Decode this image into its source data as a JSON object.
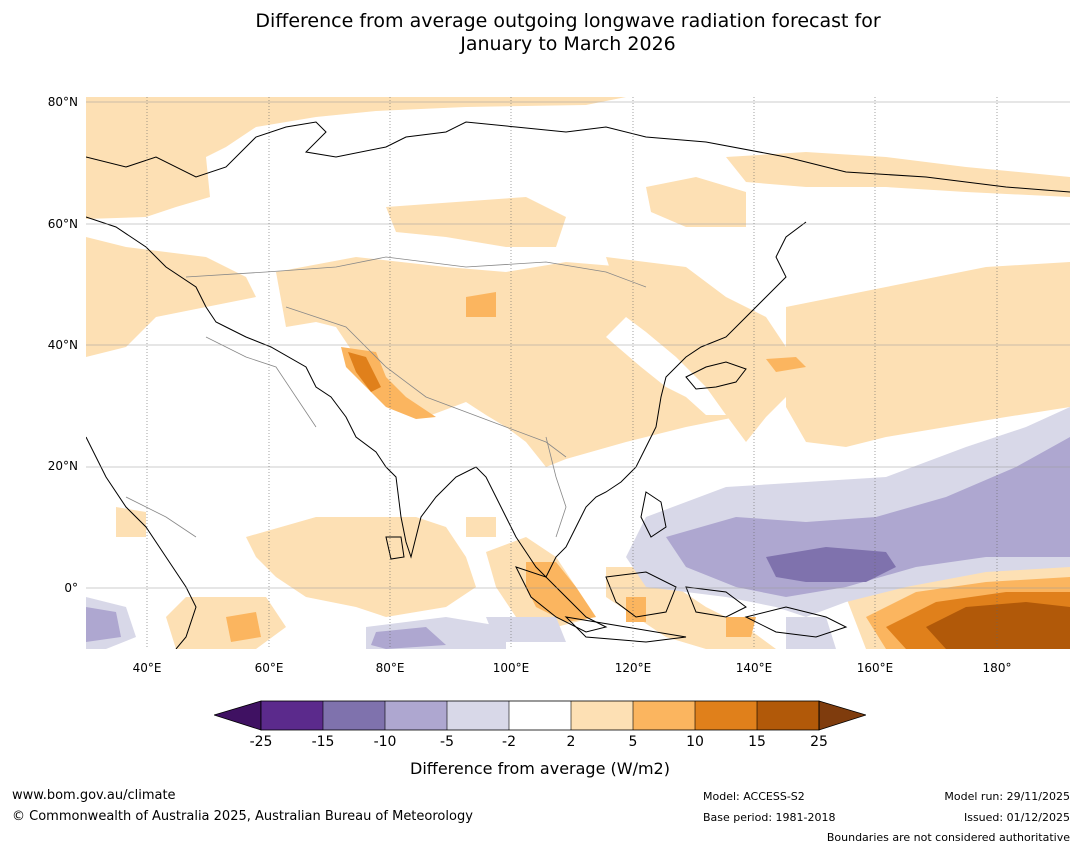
{
  "title": {
    "line1": "Difference from average outgoing longwave radiation forecast for",
    "line2": "January to March 2026"
  },
  "map": {
    "lat_labels": [
      "80°N",
      "60°N",
      "40°N",
      "20°N",
      "0°"
    ],
    "lon_labels": [
      "40°E",
      "60°E",
      "80°E",
      "100°E",
      "120°E",
      "140°E",
      "160°E",
      "180°"
    ],
    "lat_range": [
      -10,
      81
    ],
    "lon_range": [
      30,
      192
    ],
    "gridline_color": "#777777",
    "coast_color": "#000000",
    "border_color": "#888888"
  },
  "colorbar": {
    "ticks": [
      "-25",
      "-15",
      "-10",
      "-5",
      "-2",
      "2",
      "5",
      "10",
      "15",
      "25"
    ],
    "colors": [
      "#3f1162",
      "#5b2a8c",
      "#7f72ad",
      "#aea7d0",
      "#d8d8e8",
      "#ffffff",
      "#fde0b4",
      "#fbb55f",
      "#e0801b",
      "#b15909",
      "#7f3c0d"
    ],
    "label": "Difference from average (W/m2)"
  },
  "footer": {
    "website": "www.bom.gov.au/climate",
    "copyright": "© Commonwealth of Australia 2025, Australian Bureau of Meteorology",
    "model": "Model: ACCESS-S2",
    "base_period": "Base period: 1981-2018",
    "model_run": "Model run: 29/11/2025",
    "issued": "Issued: 01/12/2025",
    "disclaimer": "Boundaries are not considered authoritative"
  }
}
